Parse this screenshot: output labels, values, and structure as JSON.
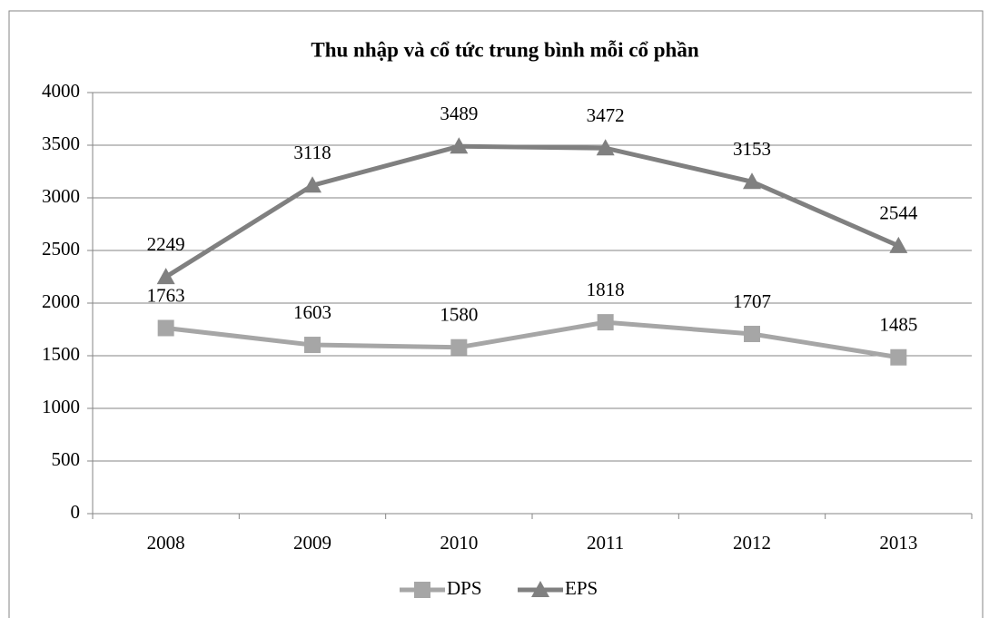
{
  "chart_data": {
    "type": "line",
    "title": "Thu nhập và cổ tức trung bình mỗi cổ phần",
    "categories": [
      "2008",
      "2009",
      "2010",
      "2011",
      "2012",
      "2013"
    ],
    "series": [
      {
        "name": "DPS",
        "color": "#a6a6a6",
        "marker": "square",
        "values": [
          1763,
          1603,
          1580,
          1818,
          1707,
          1485
        ]
      },
      {
        "name": "EPS",
        "color": "#808080",
        "marker": "triangle",
        "values": [
          2249,
          3118,
          3489,
          3472,
          3153,
          2544
        ]
      }
    ],
    "ylim": [
      0,
      4000
    ],
    "yticks": [
      0,
      500,
      1000,
      1500,
      2000,
      2500,
      3000,
      3500,
      4000
    ],
    "grid": true,
    "legend": "bottom"
  }
}
